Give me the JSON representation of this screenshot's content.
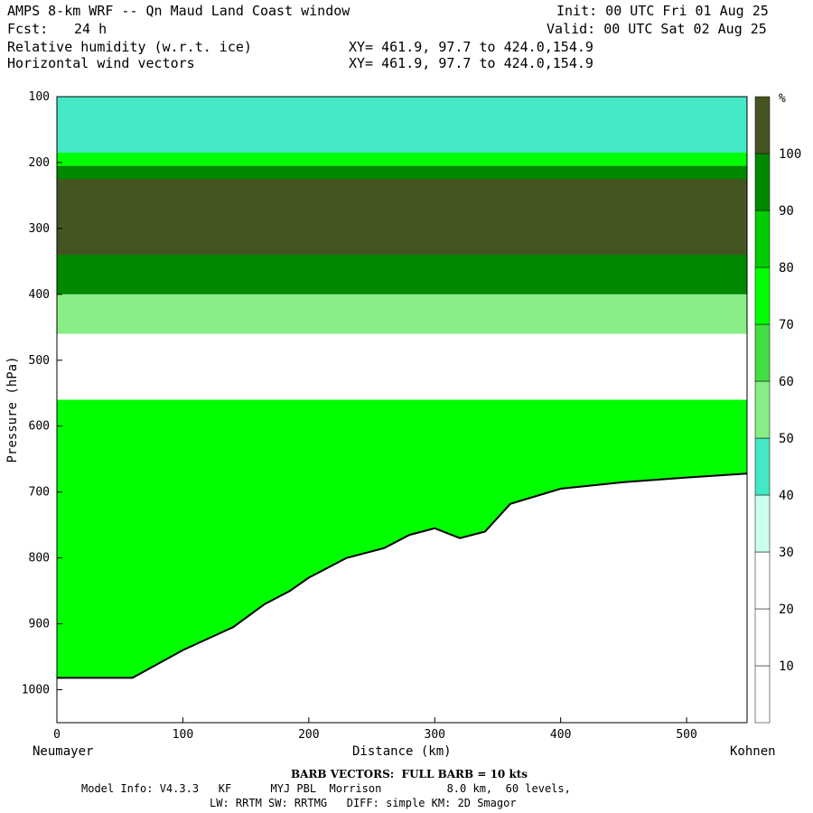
{
  "header": {
    "title": "AMPS 8-km WRF -- Qn Maud Land Coast window",
    "forecast_label": "Fcst:",
    "forecast_value": "24 h",
    "field_1": "Relative humidity (w.r.t. ice)",
    "field_2": "Horizontal wind vectors",
    "init": "Init: 00 UTC Fri 01 Aug 25",
    "valid": "Valid: 00 UTC Sat 02 Aug 25",
    "xy_1": "XY= 461.9, 97.7 to 424.0,154.9",
    "xy_2": "XY= 461.9, 97.7 to 424.0,154.9"
  },
  "footer": {
    "barb_note": "BARB VECTORS:  FULL BARB = 10 kts",
    "model_info": "Model Info: V4.3.3   KF      MYJ PBL  Morrison          8.0 km,  60 levels,",
    "physics": "LW: RRTM SW: RRTMG   DIFF: simple KM: 2D Smagor"
  },
  "chart_data": {
    "type": "heatmap",
    "title": "Relative humidity (w.r.t. ice)",
    "xlabel": "Distance (km)",
    "ylabel": "Pressure (hPa)",
    "x_start_label": "Neumayer",
    "x_end_label": "Kohnen",
    "xlim": [
      0,
      548
    ],
    "ylim": [
      1050,
      100
    ],
    "x_ticks": [
      0,
      100,
      200,
      300,
      400,
      500
    ],
    "y_ticks": [
      100,
      200,
      300,
      400,
      500,
      600,
      700,
      800,
      900,
      1000
    ],
    "colorbar": {
      "unit": "%",
      "levels": [
        10,
        20,
        30,
        40,
        50,
        60,
        70,
        80,
        90,
        100
      ],
      "colors": [
        "#ffffff",
        "#ffffff",
        "#ffffff",
        "#ccffee",
        "#44e8c4",
        "#88ee88",
        "#44dd44",
        "#00ff00",
        "#00cc00",
        "#008800",
        "#445522"
      ]
    },
    "layers": [
      {
        "name": "upper",
        "p_top": 100,
        "p_bottom": 185,
        "rh": 45
      },
      {
        "name": "dry-top",
        "p_top": 185,
        "p_bottom": 205,
        "rh": 70
      },
      {
        "name": "moist",
        "p_top": 205,
        "p_bottom": 400,
        "rh": 92
      },
      {
        "name": "saturated",
        "p_top": 225,
        "p_bottom": 340,
        "rh": 102
      },
      {
        "name": "transition",
        "p_top": 400,
        "p_bottom": 460,
        "rh": 55
      },
      {
        "name": "dry",
        "p_top": 460,
        "p_bottom": 560,
        "rh": 15
      },
      {
        "name": "lower",
        "p_top": 560,
        "p_bottom": 1000,
        "rh": 72
      }
    ],
    "terrain": {
      "distance_km": [
        0,
        60,
        100,
        140,
        165,
        185,
        200,
        230,
        260,
        280,
        300,
        320,
        340,
        360,
        400,
        450,
        500,
        548
      ],
      "surface_pressure_hpa": [
        982,
        982,
        940,
        905,
        870,
        850,
        830,
        800,
        785,
        765,
        755,
        770,
        760,
        718,
        695,
        685,
        678,
        672
      ]
    }
  }
}
